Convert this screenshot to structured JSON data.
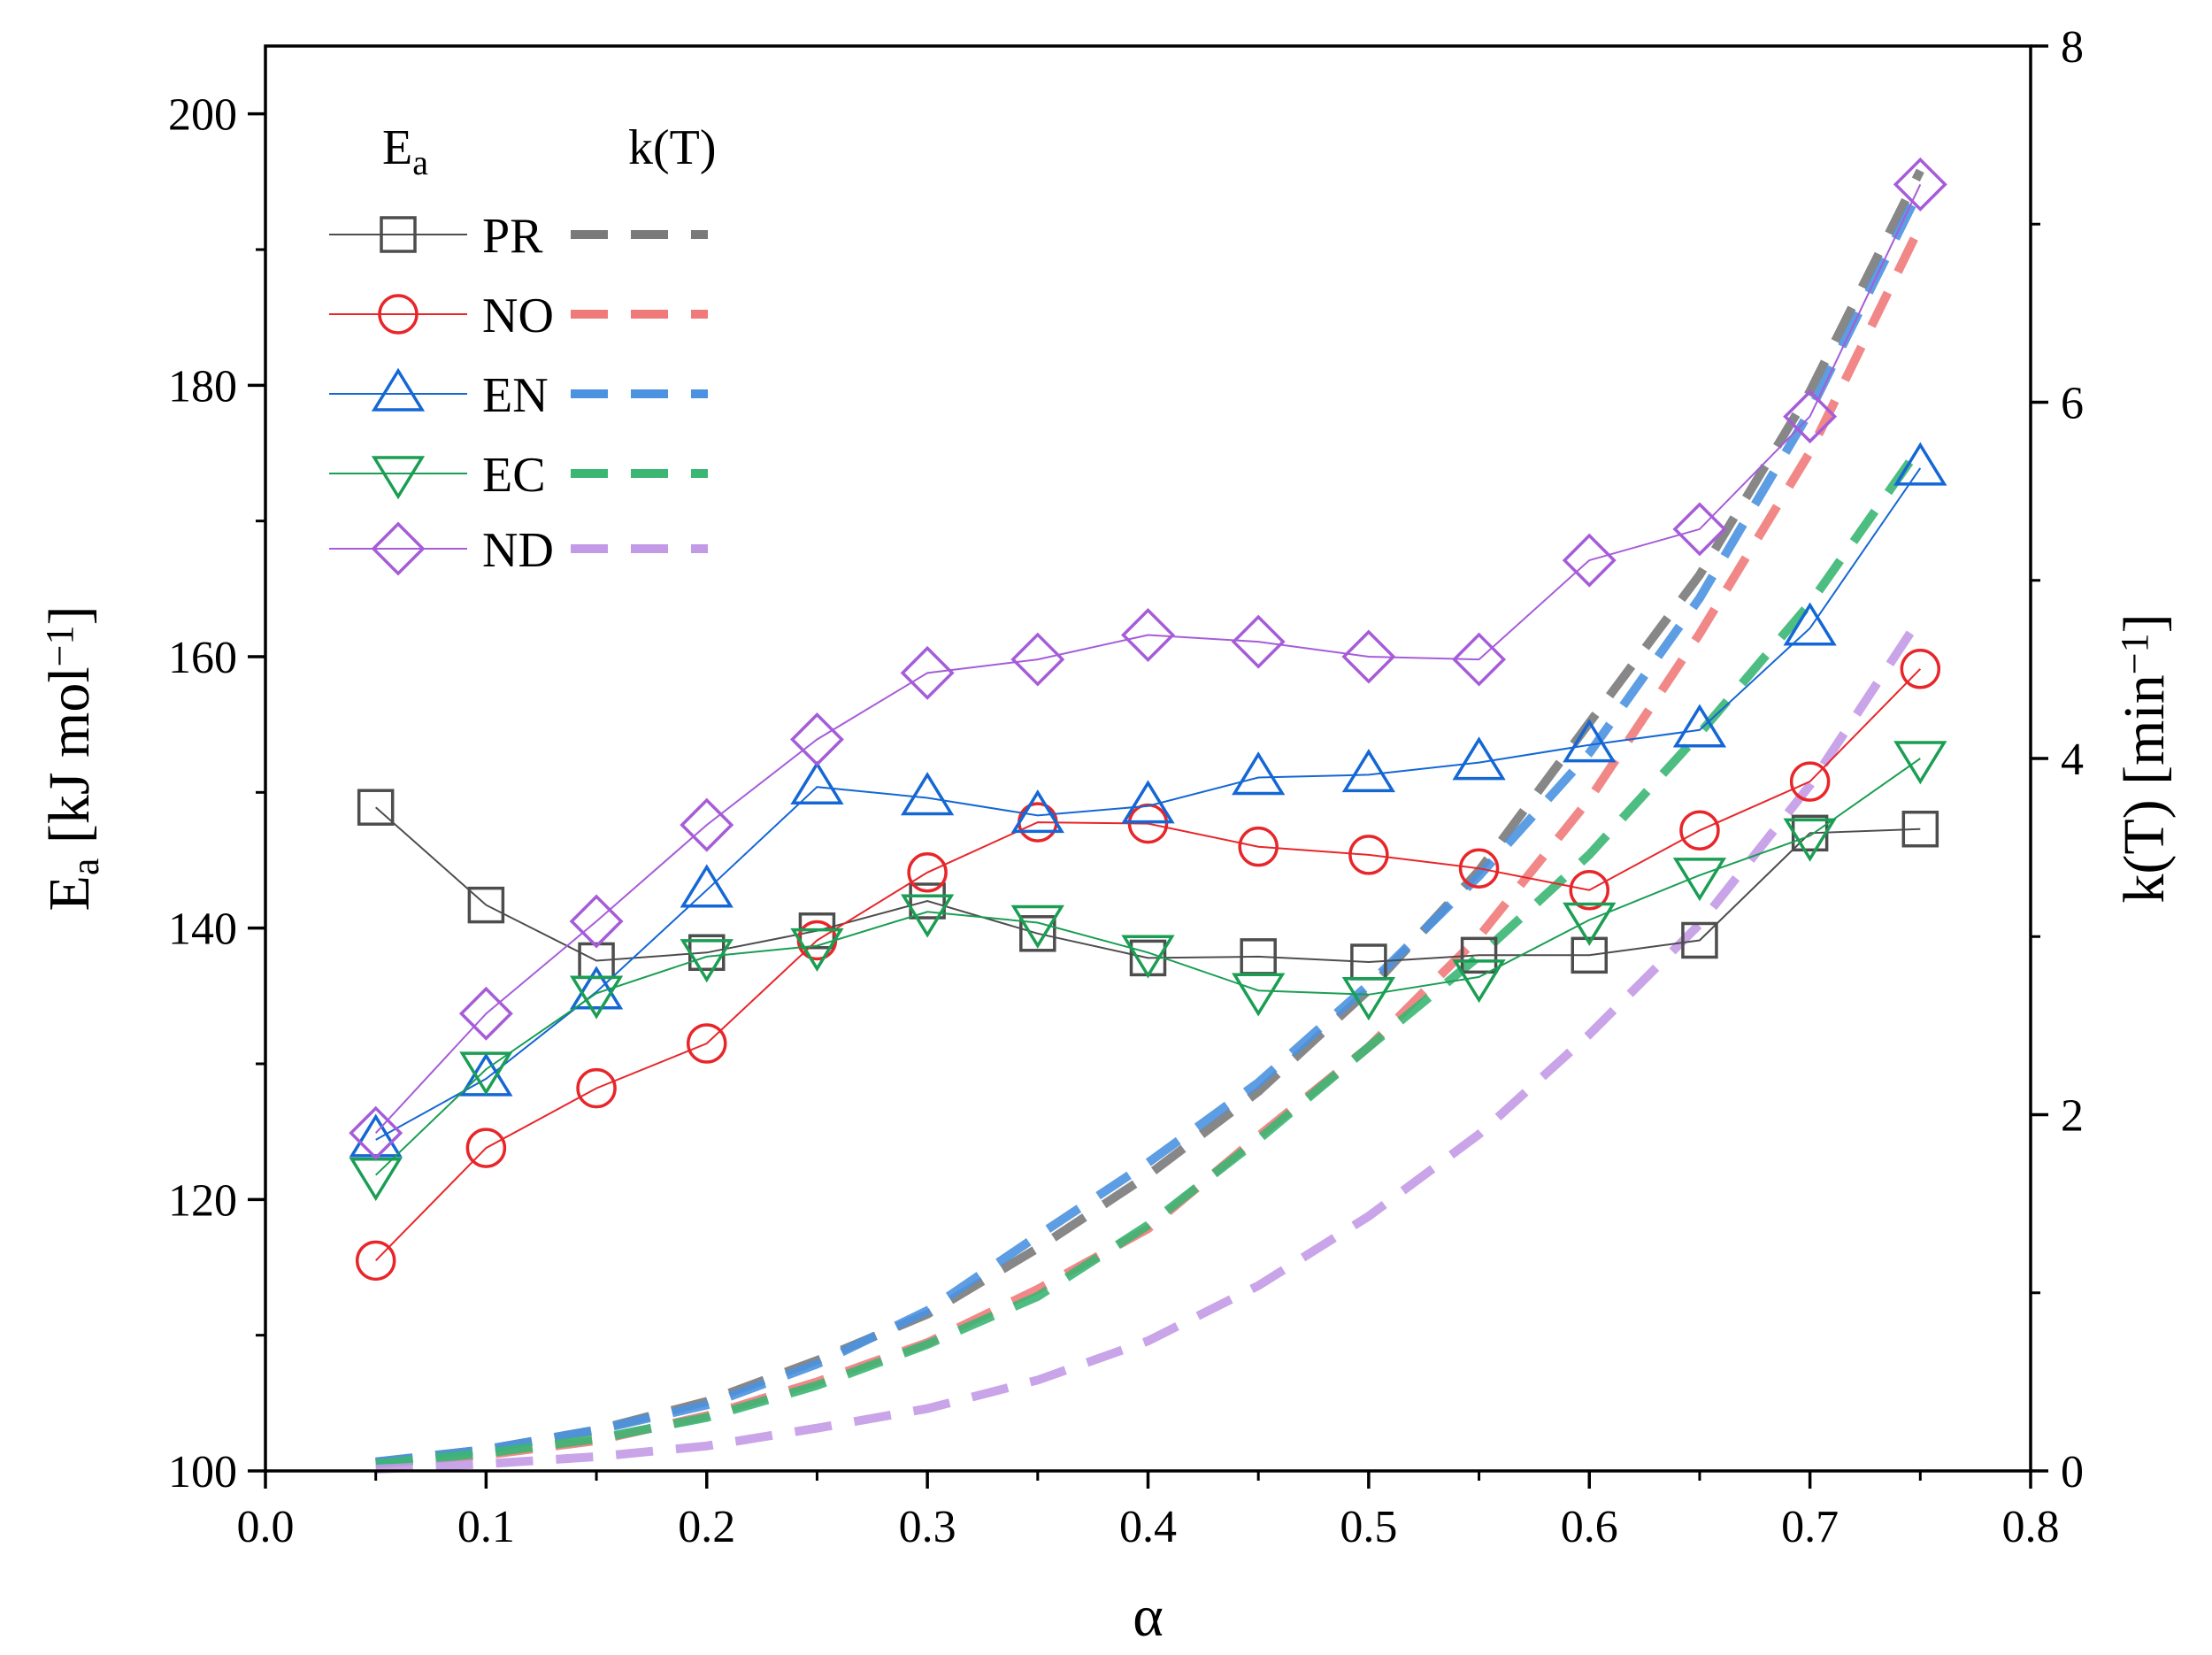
{
  "chart_data": {
    "type": "line",
    "x_axis": {
      "label": "α",
      "range": [
        0.0,
        0.8
      ],
      "ticks": [
        0.0,
        0.1,
        0.2,
        0.3,
        0.4,
        0.5,
        0.6,
        0.7,
        0.8
      ],
      "tick_labels": [
        "0.0",
        "0.1",
        "0.2",
        "0.3",
        "0.4",
        "0.5",
        "0.6",
        "0.7",
        "0.8"
      ]
    },
    "y_left": {
      "label_main": "E",
      "label_sub": "a",
      "label_unit": " [kJ mol",
      "label_sup": "−1",
      "label_close": "]",
      "range": [
        100,
        205
      ],
      "ticks": [
        100,
        120,
        140,
        160,
        180,
        200
      ],
      "minor_ticks": [
        110,
        130,
        150,
        170,
        190
      ],
      "tick_labels": [
        "100",
        "120",
        "140",
        "160",
        "180",
        "200"
      ]
    },
    "y_right": {
      "label_main": "k(T) [min",
      "label_sup": "−1",
      "label_close": "]",
      "range": [
        0,
        8
      ],
      "ticks": [
        0,
        2,
        4,
        6,
        8
      ],
      "minor_ticks": [
        1,
        3,
        5,
        7
      ],
      "tick_labels": [
        "0",
        "2",
        "4",
        "6",
        "8"
      ]
    },
    "legend": {
      "position": "top-left",
      "ea_header_main": "E",
      "ea_header_sub": "a",
      "k_header": "k(T)"
    },
    "x": [
      0.05,
      0.1,
      0.15,
      0.2,
      0.25,
      0.3,
      0.35,
      0.4,
      0.45,
      0.5,
      0.55,
      0.6,
      0.65,
      0.7,
      0.75
    ],
    "series": [
      {
        "name": "PR",
        "marker": "square",
        "color": "#4d4d4d",
        "k_color": "#7a7a7a",
        "ea": [
          148.9,
          141.7,
          137.6,
          138.2,
          139.8,
          142.0,
          139.6,
          137.8,
          137.9,
          137.5,
          138.0,
          138.0,
          139.1,
          147.0,
          147.3
        ],
        "k": [
          0.05,
          0.12,
          0.23,
          0.39,
          0.62,
          0.88,
          1.25,
          1.66,
          2.13,
          2.7,
          3.37,
          4.2,
          5.03,
          6.06,
          7.3
        ]
      },
      {
        "name": "NO",
        "marker": "circle",
        "color": "#e8262a",
        "k_color": "#f07a7a",
        "ea": [
          115.5,
          123.8,
          128.2,
          131.5,
          139.1,
          144.1,
          147.8,
          147.7,
          146.0,
          145.4,
          144.4,
          142.8,
          147.2,
          150.8,
          159.1
        ],
        "k": [
          0.04,
          0.09,
          0.17,
          0.31,
          0.5,
          0.72,
          1.02,
          1.36,
          1.88,
          2.38,
          3.0,
          3.77,
          4.7,
          5.72,
          6.99
        ]
      },
      {
        "name": "EN",
        "marker": "triangle-up",
        "color": "#1467d4",
        "k_color": "#4b92e0",
        "ea": [
          124.4,
          128.9,
          135.3,
          142.8,
          150.4,
          149.6,
          148.3,
          149.0,
          151.1,
          151.3,
          152.2,
          153.5,
          154.6,
          162.1,
          173.9
        ],
        "k": [
          0.05,
          0.12,
          0.23,
          0.37,
          0.6,
          0.9,
          1.32,
          1.73,
          2.18,
          2.73,
          3.34,
          4.03,
          4.9,
          5.95,
          7.2
        ]
      },
      {
        "name": "EC",
        "marker": "triangle-down",
        "color": "#1a9e53",
        "k_color": "#3bb673",
        "ea": [
          121.8,
          129.6,
          135.2,
          137.9,
          138.7,
          141.2,
          140.4,
          138.2,
          135.4,
          135.1,
          136.4,
          140.6,
          143.9,
          146.8,
          152.5
        ],
        "k": [
          0.04,
          0.1,
          0.18,
          0.3,
          0.48,
          0.71,
          0.98,
          1.38,
          1.86,
          2.38,
          2.89,
          3.46,
          4.14,
          4.87,
          5.75
        ]
      },
      {
        "name": "ND",
        "marker": "diamond",
        "color": "#a65cd9",
        "k_color": "#c39ae6",
        "ea": [
          124.9,
          133.7,
          140.5,
          147.6,
          153.9,
          158.8,
          159.8,
          161.6,
          161.1,
          160.0,
          159.8,
          167.1,
          169.4,
          177.7,
          194.8
        ],
        "k": [
          0.01,
          0.04,
          0.08,
          0.14,
          0.24,
          0.35,
          0.51,
          0.73,
          1.04,
          1.43,
          1.89,
          2.45,
          3.07,
          3.85,
          4.79
        ]
      }
    ]
  }
}
